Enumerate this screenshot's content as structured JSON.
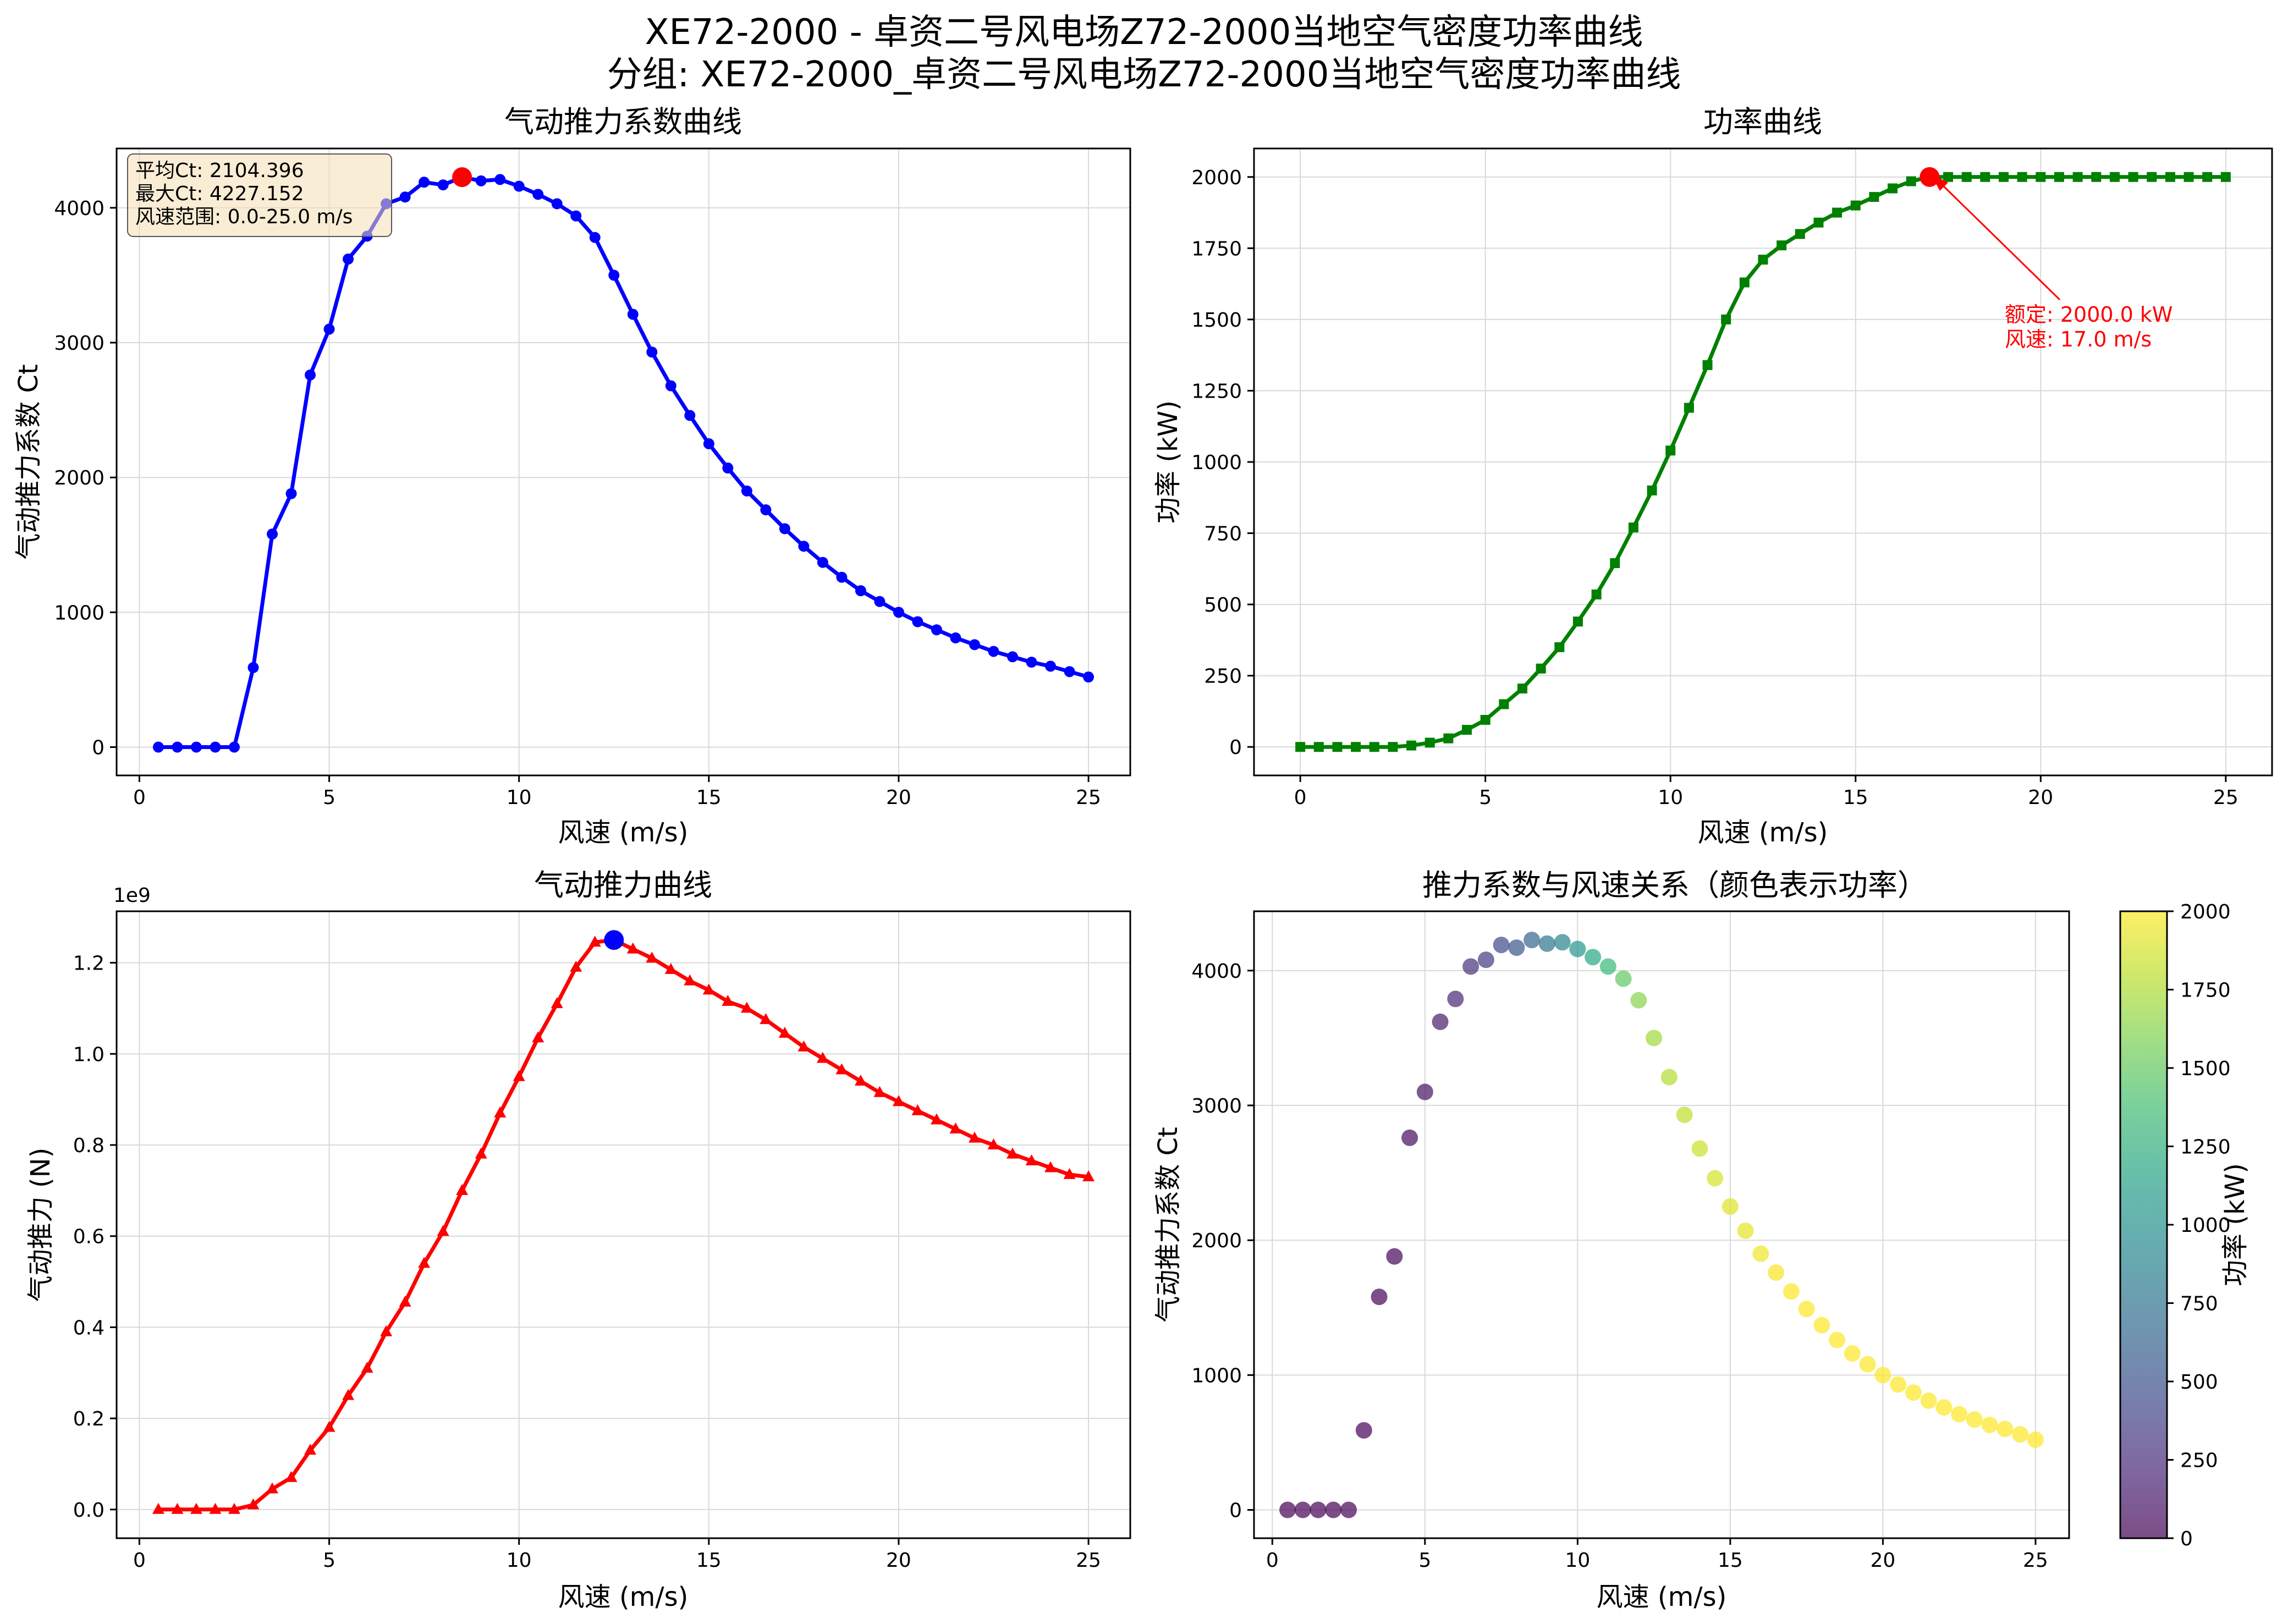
{
  "figure": {
    "title_line1": "XE72-2000 - 卓资二号风电场Z72-2000当地空气密度功率曲线",
    "title_line2": "分组: XE72-2000_卓资二号风电场Z72-2000当地空气密度功率曲线"
  },
  "chart_data": [
    {
      "id": "ct",
      "type": "line",
      "title": "气动推力系数曲线",
      "xlabel": "风速 (m/s)",
      "ylabel": "气动推力系数 Ct",
      "xlim": [
        -0.6,
        26.1
      ],
      "ylim": [
        -210,
        4440
      ],
      "xticks": [
        0,
        5,
        10,
        15,
        20,
        25
      ],
      "yticks": [
        0,
        1000,
        2000,
        3000,
        4000
      ],
      "grid": true,
      "color": "#0000ff",
      "marker": "circle",
      "x": [
        0.5,
        1.0,
        1.5,
        2.0,
        2.5,
        3.0,
        3.5,
        4.0,
        4.5,
        5.0,
        5.5,
        6.0,
        6.5,
        7.0,
        7.5,
        8.0,
        8.5,
        9.0,
        9.5,
        10.0,
        10.5,
        11.0,
        11.5,
        12.0,
        12.5,
        13.0,
        13.5,
        14.0,
        14.5,
        15.0,
        15.5,
        16.0,
        16.5,
        17.0,
        17.5,
        18.0,
        18.5,
        19.0,
        19.5,
        20.0,
        20.5,
        21.0,
        21.5,
        22.0,
        22.5,
        23.0,
        23.5,
        24.0,
        24.5,
        25.0
      ],
      "values": [
        0,
        0,
        0,
        0,
        0,
        590,
        1580,
        1880,
        2760,
        3100,
        3620,
        3790,
        4030,
        4080,
        4190,
        4170,
        4227,
        4200,
        4210,
        4160,
        4100,
        4030,
        3940,
        3780,
        3500,
        3210,
        2930,
        2680,
        2460,
        2250,
        2070,
        1900,
        1760,
        1620,
        1490,
        1370,
        1260,
        1160,
        1080,
        1000,
        930,
        870,
        810,
        760,
        710,
        670,
        630,
        600,
        560,
        520
      ],
      "highlight": {
        "x": 8.5,
        "y": 4227.152,
        "color": "#ff0000"
      },
      "info": {
        "line1": "平均Ct: 2104.396",
        "line2": "最大Ct: 4227.152",
        "line3": "风速范围: 0.0-25.0 m/s"
      }
    },
    {
      "id": "power",
      "type": "line",
      "title": "功率曲线",
      "xlabel": "风速 (m/s)",
      "ylabel": "功率 (kW)",
      "xlim": [
        -1.25,
        26.25
      ],
      "ylim": [
        -100,
        2100
      ],
      "xticks": [
        0,
        5,
        10,
        15,
        20,
        25
      ],
      "yticks": [
        0,
        250,
        500,
        750,
        1000,
        1250,
        1500,
        1750,
        2000
      ],
      "grid": true,
      "color": "#008000",
      "marker": "square",
      "x": [
        0.0,
        0.5,
        1.0,
        1.5,
        2.0,
        2.5,
        3.0,
        3.5,
        4.0,
        4.5,
        5.0,
        5.5,
        6.0,
        6.5,
        7.0,
        7.5,
        8.0,
        8.5,
        9.0,
        9.5,
        10.0,
        10.5,
        11.0,
        11.5,
        12.0,
        12.5,
        13.0,
        13.5,
        14.0,
        14.5,
        15.0,
        15.5,
        16.0,
        16.5,
        17.0,
        17.5,
        18.0,
        18.5,
        19.0,
        19.5,
        20.0,
        20.5,
        21.0,
        21.5,
        22.0,
        22.5,
        23.0,
        23.5,
        24.0,
        24.5,
        25.0
      ],
      "values": [
        0,
        0,
        0,
        0,
        0,
        0,
        5,
        15,
        30,
        60,
        95,
        150,
        205,
        275,
        350,
        440,
        535,
        645,
        770,
        900,
        1040,
        1190,
        1340,
        1500,
        1630,
        1710,
        1760,
        1800,
        1840,
        1875,
        1900,
        1930,
        1960,
        1985,
        2000,
        2000,
        2000,
        2000,
        2000,
        2000,
        2000,
        2000,
        2000,
        2000,
        2000,
        2000,
        2000,
        2000,
        2000,
        2000,
        2000
      ],
      "highlight": {
        "x": 17.0,
        "y": 2000,
        "color": "#ff0000"
      },
      "annotation": {
        "line1": "额定: 2000.0 kW",
        "line2": "风速: 17.0 m/s",
        "color": "#ff0000"
      }
    },
    {
      "id": "thrust",
      "type": "line",
      "title": "气动推力曲线",
      "xlabel": "风速 (m/s)",
      "ylabel": "气动推力 (N)",
      "offset_label": "1e9",
      "scale": 1000000000.0,
      "xlim": [
        -0.6,
        26.1
      ],
      "ylim": [
        -0.063,
        1.313
      ],
      "xticks": [
        0,
        5,
        10,
        15,
        20,
        25
      ],
      "yticks": [
        0.0,
        0.2,
        0.4,
        0.6,
        0.8,
        1.0,
        1.2
      ],
      "ytick_labels": [
        "0.0",
        "0.2",
        "0.4",
        "0.6",
        "0.8",
        "1.0",
        "1.2"
      ],
      "grid": true,
      "color": "#ff0000",
      "marker": "triangle",
      "x": [
        0.5,
        1.0,
        1.5,
        2.0,
        2.5,
        3.0,
        3.5,
        4.0,
        4.5,
        5.0,
        5.5,
        6.0,
        6.5,
        7.0,
        7.5,
        8.0,
        8.5,
        9.0,
        9.5,
        10.0,
        10.5,
        11.0,
        11.5,
        12.0,
        12.5,
        13.0,
        13.5,
        14.0,
        14.5,
        15.0,
        15.5,
        16.0,
        16.5,
        17.0,
        17.5,
        18.0,
        18.5,
        19.0,
        19.5,
        20.0,
        20.5,
        21.0,
        21.5,
        22.0,
        22.5,
        23.0,
        23.5,
        24.0,
        24.5,
        25.0
      ],
      "values": [
        0.0,
        0.0,
        0.0,
        0.0,
        0.0,
        0.01,
        0.045,
        0.07,
        0.13,
        0.18,
        0.25,
        0.31,
        0.39,
        0.455,
        0.54,
        0.61,
        0.7,
        0.78,
        0.87,
        0.95,
        1.035,
        1.11,
        1.19,
        1.245,
        1.25,
        1.23,
        1.21,
        1.185,
        1.16,
        1.14,
        1.115,
        1.1,
        1.075,
        1.045,
        1.015,
        0.99,
        0.965,
        0.94,
        0.915,
        0.895,
        0.875,
        0.855,
        0.835,
        0.815,
        0.8,
        0.78,
        0.765,
        0.75,
        0.735,
        0.73
      ],
      "highlight": {
        "x": 12.5,
        "y": 1.25,
        "color": "#0000ff"
      }
    },
    {
      "id": "scatter",
      "type": "scatter",
      "title": "推力系数与风速关系（颜色表示功率）",
      "xlabel": "风速 (m/s)",
      "ylabel": "气动推力系数 Ct",
      "xlim": [
        -0.6,
        26.1
      ],
      "ylim": [
        -210,
        4440
      ],
      "xticks": [
        0,
        5,
        10,
        15,
        20,
        25
      ],
      "yticks": [
        0,
        1000,
        2000,
        3000,
        4000
      ],
      "grid": true,
      "x": [
        0.5,
        1.0,
        1.5,
        2.0,
        2.5,
        3.0,
        3.5,
        4.0,
        4.5,
        5.0,
        5.5,
        6.0,
        6.5,
        7.0,
        7.5,
        8.0,
        8.5,
        9.0,
        9.5,
        10.0,
        10.5,
        11.0,
        11.5,
        12.0,
        12.5,
        13.0,
        13.5,
        14.0,
        14.5,
        15.0,
        15.5,
        16.0,
        16.5,
        17.0,
        17.5,
        18.0,
        18.5,
        19.0,
        19.5,
        20.0,
        20.5,
        21.0,
        21.5,
        22.0,
        22.5,
        23.0,
        23.5,
        24.0,
        24.5,
        25.0
      ],
      "values": [
        0,
        0,
        0,
        0,
        0,
        590,
        1580,
        1880,
        2760,
        3100,
        3620,
        3790,
        4030,
        4080,
        4190,
        4170,
        4227,
        4200,
        4210,
        4160,
        4100,
        4030,
        3940,
        3780,
        3500,
        3210,
        2930,
        2680,
        2460,
        2250,
        2070,
        1900,
        1760,
        1620,
        1490,
        1370,
        1260,
        1160,
        1080,
        1000,
        930,
        870,
        810,
        760,
        710,
        670,
        630,
        600,
        560,
        520
      ],
      "color_values": [
        0,
        0,
        0,
        0,
        0,
        5,
        15,
        30,
        60,
        95,
        150,
        205,
        275,
        350,
        440,
        535,
        645,
        770,
        900,
        1040,
        1190,
        1340,
        1500,
        1630,
        1710,
        1760,
        1800,
        1840,
        1875,
        1900,
        1930,
        1960,
        1985,
        2000,
        2000,
        2000,
        2000,
        2000,
        2000,
        2000,
        2000,
        2000,
        2000,
        2000,
        2000,
        2000,
        2000,
        2000,
        2000,
        2000
      ],
      "colormap": "viridis",
      "alpha": 0.7,
      "colorbar": {
        "label": "功率 (kW)",
        "range": [
          0,
          2000
        ],
        "ticks": [
          0,
          250,
          500,
          750,
          1000,
          1250,
          1500,
          1750,
          2000
        ]
      }
    }
  ]
}
